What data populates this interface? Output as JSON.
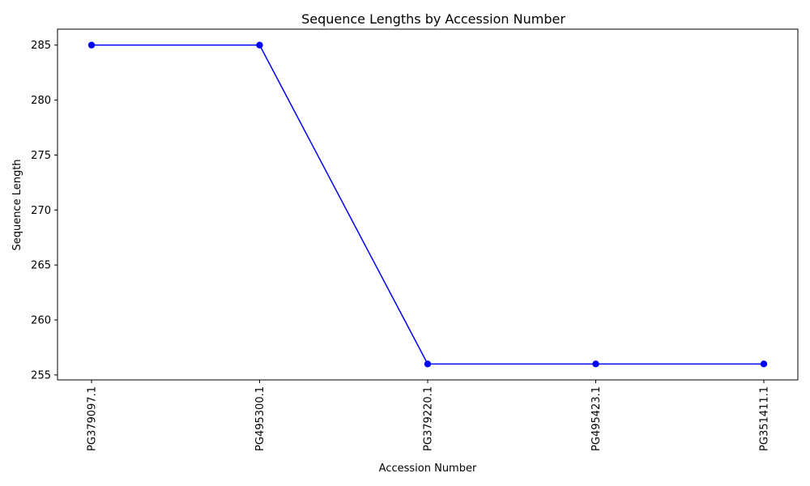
{
  "chart_data": {
    "type": "line",
    "title": "Sequence Lengths by Accession Number",
    "xlabel": "Accession Number",
    "ylabel": "Sequence Length",
    "categories": [
      "PG379097.1",
      "PG495300.1",
      "PG379220.1",
      "PG495423.1",
      "PG351411.1"
    ],
    "series": [
      {
        "values": [
          285,
          285,
          256,
          256,
          256
        ],
        "color": "#0000ff",
        "marker": "circle"
      }
    ],
    "yticks": [
      255,
      260,
      265,
      270,
      275,
      280,
      285
    ],
    "ylim": [
      254.55,
      286.45
    ],
    "grid": false,
    "legend": false
  }
}
